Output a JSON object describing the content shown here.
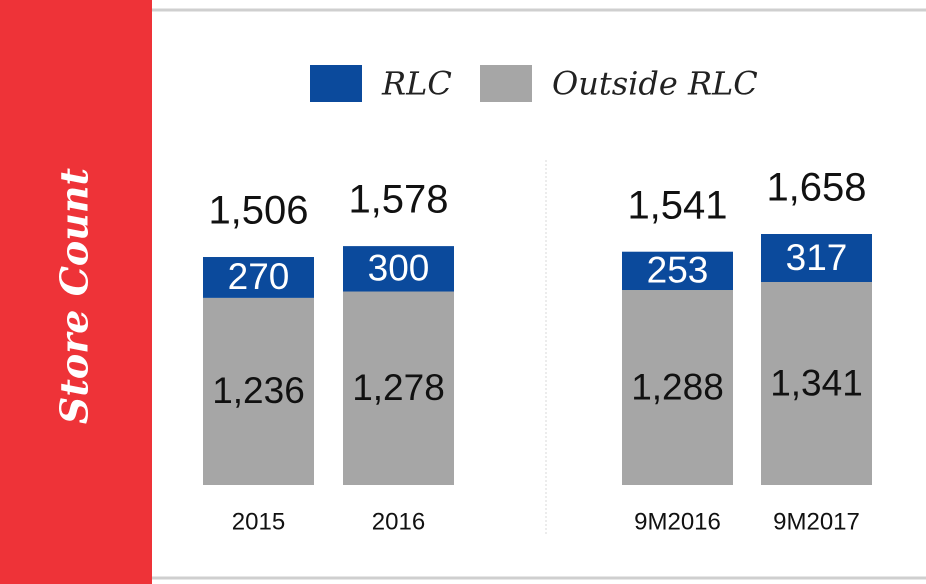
{
  "chart_data": {
    "type": "stacked_bar",
    "y_label": "Store Count",
    "categories": [
      "2015",
      "2016",
      "9M2016",
      "9M2017"
    ],
    "series": [
      {
        "name": "Outside RLC",
        "color": "#a6a6a6",
        "values": [
          1236,
          1278,
          1288,
          1341
        ],
        "value_labels": [
          "1,236",
          "1,278",
          "1,288",
          "1,341"
        ]
      },
      {
        "name": "RLC",
        "color": "#0b4a9c",
        "values": [
          270,
          300,
          253,
          317
        ]
      }
    ],
    "legend_order": [
      1,
      0
    ],
    "totals": [
      1506,
      1578,
      1541,
      1658
    ],
    "total_labels": [
      "1,506",
      "1,578",
      "1,541",
      "1,658"
    ]
  }
}
